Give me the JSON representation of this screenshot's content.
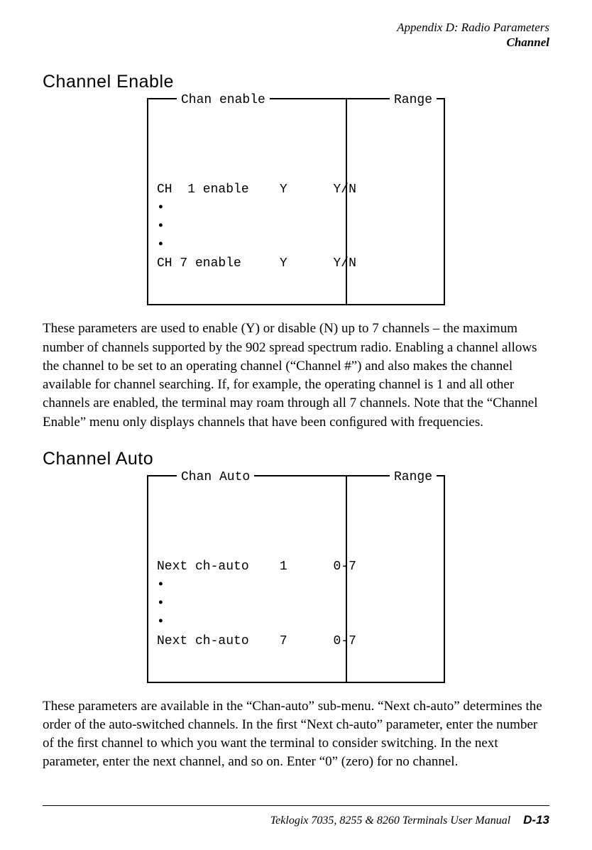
{
  "header": {
    "line1": "Appendix  D:  Radio Parameters",
    "line2": "Channel"
  },
  "section1": {
    "heading": "Channel Enable",
    "diagram": {
      "label_left": "Chan enable",
      "label_right": "Range",
      "row1_param": "CH  1 enable",
      "row1_val": "Y",
      "row1_range": "Y/N",
      "dots": "•\n•\n•",
      "row5_param": "CH 7 enable",
      "row5_val": "Y",
      "row5_range": "Y/N"
    },
    "paragraph": "These parameters are used to enable (Y) or disable (N) up to 7 channels – the maximum number of channels supported by the 902 spread spectrum radio. Enabling a channel allows the channel to be set to an operating channel (“Channel #”) and also makes the channel available for channel searching. If, for example, the operating channel is 1 and all other channels are enabled, the terminal may roam through all 7 channels. Note that the “Channel Enable” menu only displays channels that have been conﬁgured with frequencies."
  },
  "section2": {
    "heading": "Channel Auto",
    "diagram": {
      "label_left": "Chan Auto",
      "label_right": "Range",
      "row1_param": "Next ch-auto",
      "row1_val": "1",
      "row1_range": "0-7",
      "dots": "•\n•\n•",
      "row5_param": "Next ch-auto",
      "row5_val": "7",
      "row5_range": "0-7"
    },
    "paragraph": "These parameters are available in the “Chan-auto” sub-menu. “Next ch-auto” determines the order of the auto-switched channels. In the ﬁrst “Next ch-auto” parameter, enter the number of the ﬁrst channel to which you want the terminal to consider switching. In the next parameter, enter the next channel, and so on. Enter “0” (zero) for no channel."
  },
  "footer": {
    "text": "Teklogix 7035, 8255 & 8260 Terminals User Manual",
    "page": "D-13"
  }
}
